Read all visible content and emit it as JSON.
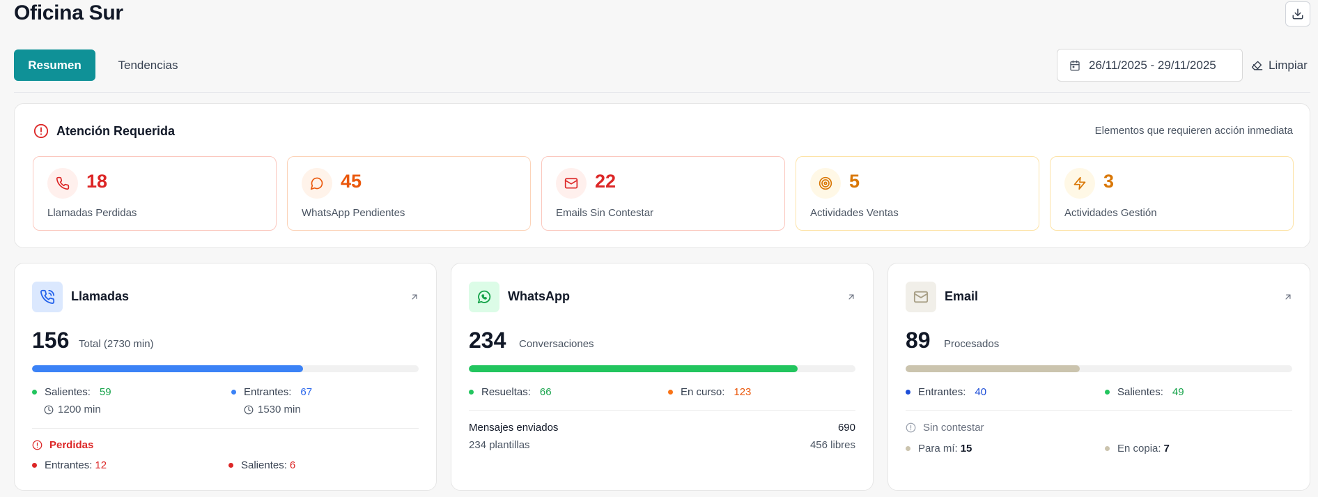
{
  "header": {
    "title": "Oficina Sur"
  },
  "tabs": [
    {
      "label": "Resumen"
    },
    {
      "label": "Tendencias"
    }
  ],
  "date_range": "26/11/2025 - 29/11/2025",
  "clear_label": "Limpiar",
  "attention": {
    "title": "Atención Requerida",
    "subtitle": "Elementos que requieren acción inmediata",
    "items": [
      {
        "value": "18",
        "label": "Llamadas Perdidas",
        "icon": "phone-icon",
        "color": "#dc2626"
      },
      {
        "value": "45",
        "label": "WhatsApp Pendientes",
        "icon": "chat-bubble-icon",
        "color": "#ea580c"
      },
      {
        "value": "22",
        "label": "Emails Sin Contestar",
        "icon": "mail-icon",
        "color": "#dc2626"
      },
      {
        "value": "5",
        "label": "Actividades Ventas",
        "icon": "target-icon",
        "color": "#d97706"
      },
      {
        "value": "3",
        "label": "Actividades Gestión",
        "icon": "bolt-icon",
        "color": "#d97706"
      }
    ]
  },
  "calls": {
    "title": "Llamadas",
    "total": "156",
    "total_label": "Total (2730 min)",
    "progress": 0.7,
    "outgoing_label": "Salientes:",
    "outgoing_value": "59",
    "outgoing_min": "1200 min",
    "incoming_label": "Entrantes:",
    "incoming_value": "67",
    "incoming_min": "1530 min",
    "lost_title": "Perdidas",
    "lost_in_label": "Entrantes:",
    "lost_in_value": "12",
    "lost_out_label": "Salientes:",
    "lost_out_value": "6"
  },
  "whatsapp": {
    "title": "WhatsApp",
    "total": "234",
    "total_label": "Conversaciones",
    "progress": 0.85,
    "resolved_label": "Resueltas:",
    "resolved_value": "66",
    "ongoing_label": "En curso:",
    "ongoing_value": "123",
    "sent_label": "Mensajes enviados",
    "sent_value": "690",
    "templates_label": "234 plantillas",
    "free_label": "456 libres"
  },
  "email": {
    "title": "Email",
    "total": "89",
    "total_label": "Procesados",
    "progress": 0.45,
    "incoming_label": "Entrantes:",
    "incoming_value": "40",
    "outgoing_label": "Salientes:",
    "outgoing_value": "49",
    "unanswered_title": "Sin contestar",
    "to_me_label": "Para mí:",
    "to_me_value": "15",
    "cc_label": "En copia:",
    "cc_value": "7"
  },
  "colors": {
    "accent": "#0f9197",
    "blue": "#3b82f6",
    "green": "#22c55e",
    "orange": "#ea580c",
    "red": "#dc2626",
    "beige": "#cbc4ae"
  }
}
